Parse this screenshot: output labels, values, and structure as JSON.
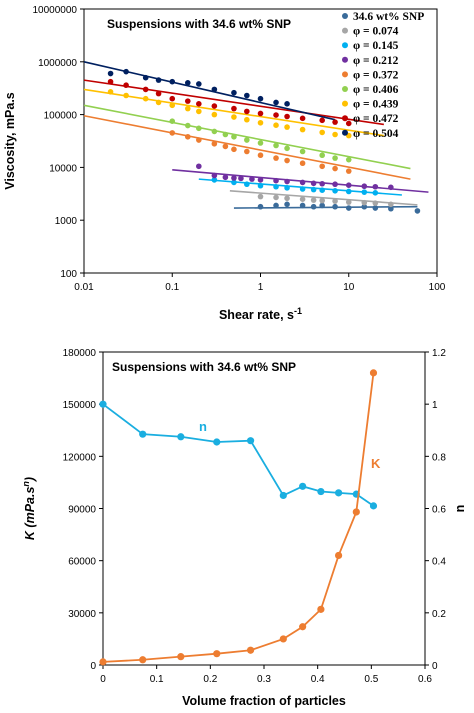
{
  "chart_data": [
    {
      "type": "scatter",
      "annotation": "Suspensions with 34.6 wt% SNP",
      "xlabel": "Shear rate, s",
      "xlabel_sup": "-1",
      "ylabel": "Viscosity, mPa.s",
      "xscale": "log",
      "yscale": "log",
      "xlim": [
        0.01,
        100
      ],
      "ylim": [
        100,
        10000000
      ],
      "xticks": [
        "0.01",
        "0.1",
        "1",
        "10",
        "100"
      ],
      "yticks": [
        "100",
        "1000",
        "10000",
        "100000",
        "1000000",
        "10000000"
      ],
      "legend_position": "top-right",
      "series": [
        {
          "name": "34.6 wt% SNP",
          "color": "#3a6b9a",
          "fit": {
            "x": [
              0.5,
              60
            ],
            "y": [
              1700,
              1800
            ]
          },
          "x": [
            1,
            1.5,
            2,
            3,
            4,
            5,
            7,
            10,
            15,
            20,
            30,
            60
          ],
          "y": [
            1800,
            1900,
            2000,
            1900,
            1800,
            1900,
            1800,
            1700,
            1800,
            1700,
            1650,
            1500
          ]
        },
        {
          "name": "φ = 0.074",
          "color": "#a6a6a6",
          "fit": {
            "x": [
              0.45,
              60
            ],
            "y": [
              3600,
              1950
            ]
          },
          "x": [
            1,
            1.5,
            2,
            3,
            4,
            5,
            7,
            10,
            15,
            20,
            30
          ],
          "y": [
            2800,
            2700,
            2600,
            2500,
            2400,
            2350,
            2300,
            2200,
            2150,
            2100,
            2000
          ]
        },
        {
          "name": "φ = 0.145",
          "color": "#00b0f0",
          "fit": {
            "x": [
              0.2,
              40
            ],
            "y": [
              6000,
              3000
            ]
          },
          "x": [
            0.3,
            0.5,
            0.7,
            1,
            1.5,
            2,
            3,
            4,
            5,
            7,
            10,
            15,
            20
          ],
          "y": [
            5800,
            5200,
            4800,
            4500,
            4300,
            4100,
            3900,
            3800,
            3700,
            3600,
            3500,
            3400,
            3300
          ]
        },
        {
          "name": "φ = 0.212",
          "color": "#7030a0",
          "fit": {
            "x": [
              0.1,
              80
            ],
            "y": [
              9000,
              3400
            ]
          },
          "x": [
            0.2,
            0.3,
            0.4,
            0.5,
            0.6,
            0.8,
            1,
            1.5,
            2,
            3,
            4,
            5,
            7,
            10,
            15,
            20,
            30
          ],
          "y": [
            10500,
            7000,
            6500,
            6300,
            6200,
            6000,
            5800,
            5600,
            5400,
            5200,
            5000,
            4900,
            4800,
            4600,
            4400,
            4300,
            4200
          ]
        },
        {
          "name": "φ = 0.372",
          "color": "#ed7d31",
          "fit": {
            "x": [
              0.01,
              50
            ],
            "y": [
              95000,
              6000
            ]
          },
          "x": [
            0.1,
            0.15,
            0.2,
            0.3,
            0.4,
            0.5,
            0.7,
            1,
            1.5,
            2,
            3,
            5,
            7,
            10
          ],
          "y": [
            45000,
            38000,
            33000,
            28000,
            25000,
            22000,
            20000,
            17000,
            15000,
            13500,
            12000,
            10500,
            9500,
            8500
          ]
        },
        {
          "name": "φ = 0.406",
          "color": "#92d050",
          "fit": {
            "x": [
              0.01,
              50
            ],
            "y": [
              150000,
              9500
            ]
          },
          "x": [
            0.1,
            0.15,
            0.2,
            0.3,
            0.4,
            0.5,
            0.7,
            1,
            1.5,
            2,
            3,
            5,
            7,
            10
          ],
          "y": [
            75000,
            62000,
            55000,
            48000,
            42000,
            38000,
            33000,
            29000,
            26000,
            23000,
            20000,
            17000,
            15000,
            14000
          ]
        },
        {
          "name": "φ = 0.439",
          "color": "#ffc000",
          "fit": {
            "x": [
              0.01,
              25
            ],
            "y": [
              300000,
              40000
            ]
          },
          "x": [
            0.02,
            0.03,
            0.05,
            0.07,
            0.1,
            0.15,
            0.2,
            0.3,
            0.5,
            0.7,
            1,
            1.5,
            2,
            3,
            5,
            7,
            10
          ],
          "y": [
            270000,
            230000,
            200000,
            170000,
            150000,
            130000,
            115000,
            100000,
            90000,
            80000,
            70000,
            63000,
            58000,
            52000,
            46000,
            42000,
            40000
          ]
        },
        {
          "name": "φ = 0.472",
          "color": "#c00000",
          "fit": {
            "x": [
              0.01,
              25
            ],
            "y": [
              450000,
              65000
            ]
          },
          "x": [
            0.02,
            0.03,
            0.05,
            0.07,
            0.1,
            0.15,
            0.2,
            0.3,
            0.5,
            0.7,
            1,
            1.5,
            2,
            3,
            5,
            7,
            10
          ],
          "y": [
            420000,
            360000,
            300000,
            250000,
            200000,
            180000,
            160000,
            145000,
            130000,
            115000,
            105000,
            98000,
            92000,
            85000,
            78000,
            72000,
            68000
          ]
        },
        {
          "name": "φ = 0.504",
          "color": "#002060",
          "fit": {
            "x": [
              0.01,
              7
            ],
            "y": [
              1000000,
              80000
            ]
          },
          "x": [
            0.02,
            0.03,
            0.05,
            0.07,
            0.1,
            0.15,
            0.2,
            0.3,
            0.5,
            0.7,
            1,
            1.5,
            2
          ],
          "y": [
            600000,
            650000,
            500000,
            450000,
            420000,
            400000,
            380000,
            300000,
            260000,
            230000,
            200000,
            170000,
            160000
          ]
        }
      ]
    },
    {
      "type": "line",
      "annotation": "Suspensions with 34.6 wt% SNP",
      "xlabel": "Volume fraction of particles",
      "ylabel_left": "K (mPa.s",
      "ylabel_left_sup": "n",
      "ylabel_left_close": ")",
      "ylabel_right": "n",
      "xlim": [
        0,
        0.6
      ],
      "ylim_left": [
        0,
        180000
      ],
      "ylim_right": [
        0,
        1.2
      ],
      "xticks": [
        "0",
        "0.1",
        "0.2",
        "0.3",
        "0.4",
        "0.5",
        "0.6"
      ],
      "yticks_left": [
        "0",
        "30000",
        "60000",
        "90000",
        "120000",
        "150000",
        "180000"
      ],
      "yticks_right": [
        "0",
        "0.2",
        "0.4",
        "0.6",
        "0.8",
        "1",
        "1.2"
      ],
      "series": [
        {
          "name": "n",
          "axis": "right",
          "color": "#1aaee0",
          "x": [
            0,
            0.074,
            0.145,
            0.212,
            0.275,
            0.336,
            0.372,
            0.406,
            0.439,
            0.472,
            0.504
          ],
          "y": [
            1.0,
            0.885,
            0.875,
            0.855,
            0.86,
            0.65,
            0.685,
            0.665,
            0.66,
            0.655,
            0.61
          ]
        },
        {
          "name": "K",
          "axis": "left",
          "color": "#ed7d31",
          "x": [
            0,
            0.074,
            0.145,
            0.212,
            0.275,
            0.336,
            0.372,
            0.406,
            0.439,
            0.472,
            0.504
          ],
          "y": [
            1800,
            3000,
            4800,
            6500,
            8500,
            15000,
            22000,
            32000,
            63000,
            88000,
            168000
          ]
        }
      ]
    }
  ]
}
